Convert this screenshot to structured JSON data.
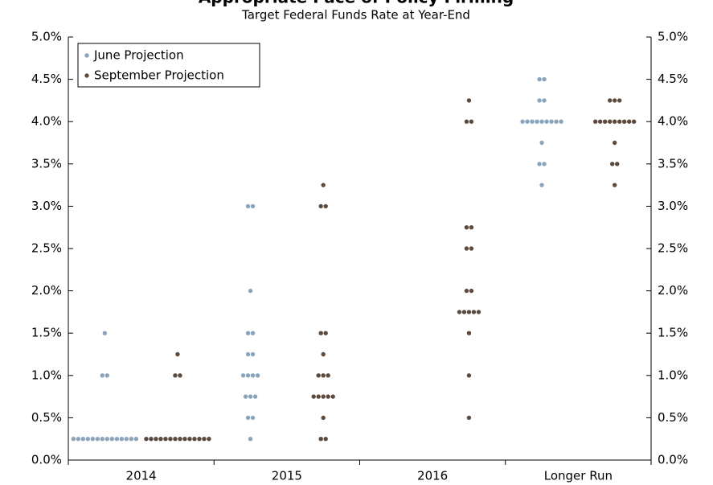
{
  "chart_data": {
    "type": "dot",
    "title": "Appropriate Pace of Policy Firming",
    "subtitle": "Target Federal Funds Rate at Year-End",
    "categories": [
      "2014",
      "2015",
      "2016",
      "Longer Run"
    ],
    "series": [
      {
        "name": "June Projection",
        "color": "#8aa4bc",
        "values": [
          [
            1.5,
            1.0,
            1.0,
            0.25,
            0.25,
            0.25,
            0.25,
            0.25,
            0.25,
            0.25,
            0.25,
            0.25,
            0.25,
            0.25,
            0.25,
            0.25,
            0.25
          ],
          [
            3.0,
            3.0,
            2.0,
            1.5,
            1.5,
            1.25,
            1.25,
            1.0,
            1.0,
            1.0,
            1.0,
            0.75,
            0.75,
            0.75,
            0.5,
            0.5,
            0.25
          ],
          [],
          [
            4.5,
            4.5,
            4.25,
            4.25,
            4.0,
            4.0,
            4.0,
            4.0,
            4.0,
            4.0,
            4.0,
            4.0,
            4.0,
            3.75,
            3.5,
            3.5,
            3.25
          ]
        ]
      },
      {
        "name": "September Projection",
        "color": "#5c4a3e",
        "values": [
          [
            1.25,
            1.0,
            1.0,
            0.25,
            0.25,
            0.25,
            0.25,
            0.25,
            0.25,
            0.25,
            0.25,
            0.25,
            0.25,
            0.25,
            0.25,
            0.25,
            0.25
          ],
          [
            3.25,
            3.0,
            3.0,
            1.5,
            1.5,
            1.25,
            1.0,
            1.0,
            1.0,
            0.75,
            0.75,
            0.75,
            0.75,
            0.75,
            0.5,
            0.25,
            0.25
          ],
          [
            4.25,
            4.0,
            4.0,
            2.75,
            2.75,
            2.5,
            2.5,
            2.0,
            2.0,
            1.75,
            1.75,
            1.75,
            1.75,
            1.75,
            1.5,
            1.0,
            0.5
          ],
          [
            4.25,
            4.25,
            4.25,
            4.0,
            4.0,
            4.0,
            4.0,
            4.0,
            4.0,
            4.0,
            4.0,
            4.0,
            3.75,
            3.5,
            3.5,
            3.25
          ]
        ]
      }
    ],
    "ylim": [
      0,
      5
    ],
    "yticks": [
      {
        "value": 0,
        "label": "0.0%"
      },
      {
        "value": 0.5,
        "label": "0.5%"
      },
      {
        "value": 1,
        "label": "1.0%"
      },
      {
        "value": 1.5,
        "label": "1.5%"
      },
      {
        "value": 2,
        "label": "2.0%"
      },
      {
        "value": 2.5,
        "label": "2.5%"
      },
      {
        "value": 3,
        "label": "3.0%"
      },
      {
        "value": 3.5,
        "label": "3.5%"
      },
      {
        "value": 4,
        "label": "4.0%"
      },
      {
        "value": 4.5,
        "label": "4.5%"
      },
      {
        "value": 5,
        "label": "5.0%"
      }
    ],
    "legend": "upper left"
  }
}
